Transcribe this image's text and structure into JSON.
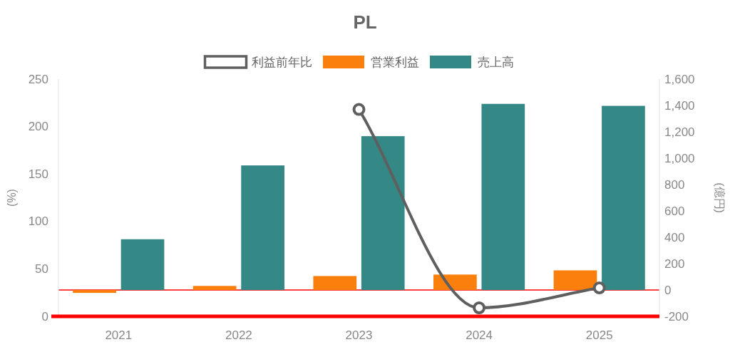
{
  "chart_data": {
    "type": "bar",
    "title": "PL",
    "categories": [
      "2021",
      "2022",
      "2023",
      "2024",
      "2025"
    ],
    "series": [
      {
        "name": "利益前年比",
        "type": "line",
        "marker": "circle",
        "color": "#5f5f5f",
        "values": [
          null,
          null,
          218,
          9,
          30
        ]
      },
      {
        "name": "営業利益",
        "color": "#fa7f0c",
        "axis": "y2",
        "values": [
          -22,
          31,
          106,
          117,
          149
        ]
      },
      {
        "name": "売上高",
        "color": "#348886",
        "axis": "y2",
        "values": [
          385,
          945,
          1167,
          1412,
          1397
        ]
      }
    ],
    "ylabel": "(%)",
    "y2label": "(億円)",
    "ylim": [
      0,
      250
    ],
    "yticks": [
      0,
      50,
      100,
      150,
      200,
      250
    ],
    "y2lim": [
      -200,
      1600
    ],
    "y2ticks": [
      -200,
      0,
      200,
      400,
      600,
      800,
      {
        "value": 1000,
        "label": "1,000"
      },
      {
        "value": 1200,
        "label": "1,200"
      },
      {
        "value": 1400,
        "label": "1,400"
      },
      {
        "value": 1600,
        "label": "1,600"
      }
    ],
    "ref_lines": [
      {
        "axis": "y2",
        "value": 0,
        "color": "#ff0000"
      }
    ],
    "legend": "top"
  }
}
